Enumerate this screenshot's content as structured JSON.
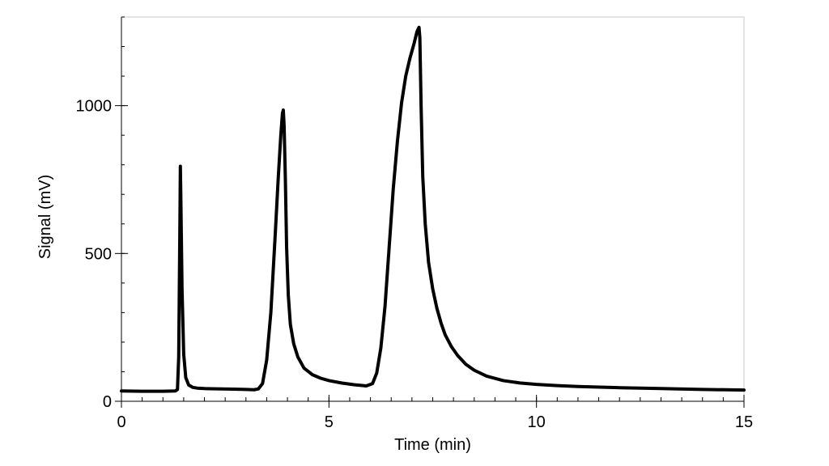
{
  "chart_data": {
    "type": "line",
    "title": "",
    "xlabel": "Time (min)",
    "ylabel": "Signal (mV)",
    "xlim": [
      0,
      15
    ],
    "ylim": [
      0,
      1300
    ],
    "x_ticks": [
      {
        "value": 0,
        "label": "0"
      },
      {
        "value": 5,
        "label": "5"
      },
      {
        "value": 10,
        "label": "10"
      },
      {
        "value": 15,
        "label": "15"
      }
    ],
    "y_ticks": [
      {
        "value": 0,
        "label": "0"
      },
      {
        "value": 500,
        "label": "500"
      },
      {
        "value": 1000,
        "label": "1000"
      }
    ],
    "x_minor_step": 0.5,
    "y_minor_step": 100,
    "grid": false,
    "line_color": "#000000",
    "series": [
      {
        "x": [
          0,
          0.5,
          1.0,
          1.3,
          1.35,
          1.38,
          1.41,
          1.42,
          1.43,
          1.46,
          1.5,
          1.55,
          1.62,
          1.72,
          1.85,
          2.0,
          2.3,
          2.7,
          3.0,
          3.2,
          3.3,
          3.4,
          3.5,
          3.6,
          3.7,
          3.78,
          3.84,
          3.88,
          3.9,
          3.92,
          3.95,
          3.98,
          4.02,
          4.07,
          4.15,
          4.25,
          4.4,
          4.6,
          4.8,
          5.0,
          5.3,
          5.6,
          5.9,
          6.05,
          6.15,
          6.25,
          6.35,
          6.45,
          6.55,
          6.65,
          6.75,
          6.85,
          6.95,
          7.05,
          7.12,
          7.17,
          7.19,
          7.22,
          7.26,
          7.32,
          7.4,
          7.5,
          7.6,
          7.7,
          7.8,
          7.95,
          8.1,
          8.3,
          8.5,
          8.8,
          9.2,
          9.6,
          10.0,
          10.5,
          11.0,
          12.0,
          13.0,
          14.0,
          15.0
        ],
        "y": [
          35,
          34,
          34,
          35,
          40,
          150,
          620,
          795,
          700,
          380,
          160,
          80,
          55,
          47,
          44,
          43,
          42,
          41,
          40,
          39,
          42,
          60,
          140,
          300,
          550,
          760,
          900,
          975,
          985,
          930,
          750,
          520,
          360,
          260,
          195,
          150,
          112,
          90,
          78,
          70,
          62,
          56,
          52,
          60,
          95,
          180,
          320,
          520,
          720,
          880,
          1010,
          1100,
          1160,
          1210,
          1250,
          1265,
          1230,
          1000,
          760,
          600,
          470,
          380,
          315,
          265,
          225,
          185,
          155,
          125,
          105,
          85,
          70,
          62,
          57,
          53,
          50,
          46,
          43,
          40,
          38
        ]
      }
    ]
  }
}
